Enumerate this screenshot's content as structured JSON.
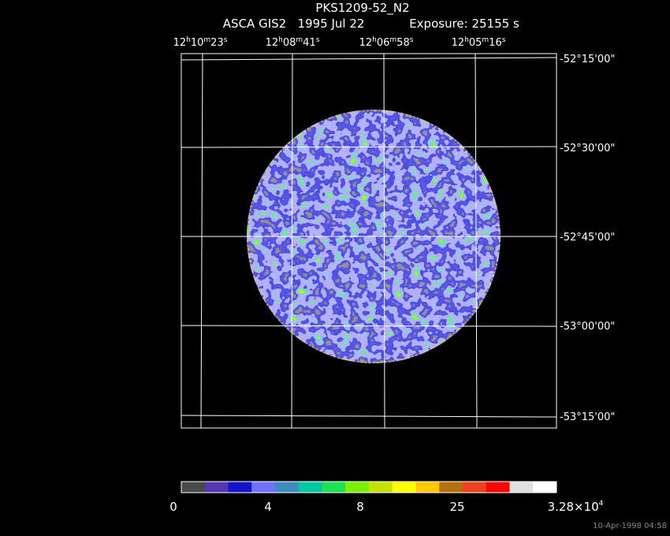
{
  "header": {
    "title": "PKS1209-52_N2",
    "instrument": "ASCA GIS2",
    "date": "1995 Jul 22",
    "exposure": "Exposure: 25155 s"
  },
  "ra_labels": [
    {
      "hours": "12",
      "h": "h",
      "minutes": "10",
      "m": "m",
      "seconds": "23",
      "s": "s"
    },
    {
      "hours": "12",
      "h": "h",
      "minutes": "08",
      "m": "m",
      "seconds": "41",
      "s": "s"
    },
    {
      "hours": "12",
      "h": "h",
      "minutes": "06",
      "m": "m",
      "seconds": "58",
      "s": "s"
    },
    {
      "hours": "12",
      "h": "h",
      "minutes": "05",
      "m": "m",
      "seconds": "16",
      "s": "s"
    }
  ],
  "dec_labels": [
    "-52°15'00\"",
    "-52°30'00\"",
    "-52°45'00\"",
    "-53°00'00\"",
    "-53°15'00\""
  ],
  "colorbar": {
    "colors": [
      "#4a4a4a",
      "#5636b4",
      "#1414c8",
      "#7070ff",
      "#3c8cc0",
      "#00c8a0",
      "#1ee050",
      "#78f000",
      "#c4e400",
      "#ffff00",
      "#ffc800",
      "#b8700c",
      "#f04020",
      "#ff0000",
      "#e0e0e0",
      "#ffffff"
    ],
    "labels": [
      "0",
      "4",
      "8",
      "25"
    ],
    "max_mantissa": "3.28×10",
    "max_exponent": "4"
  },
  "timestamp": "10-Apr-1998 04:58"
}
